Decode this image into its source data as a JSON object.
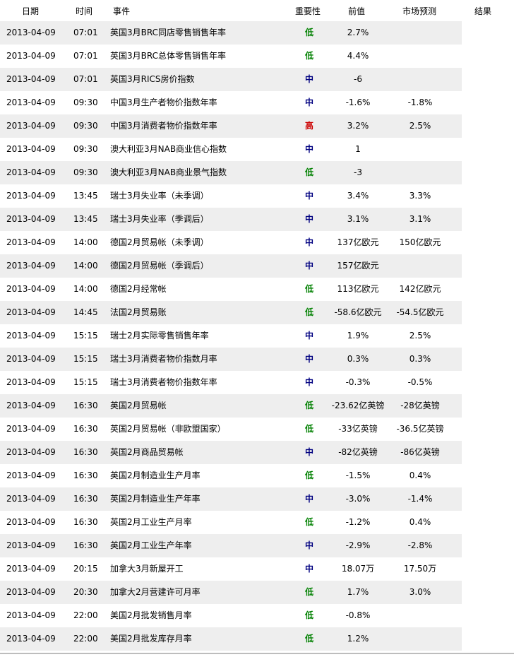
{
  "colors": {
    "low": "#008000",
    "medium": "#000080",
    "high": "#cc0000",
    "row_alt": "#eeeeee"
  },
  "header": {
    "date": "日期",
    "time": "时间",
    "event": "事件",
    "importance": "重要性",
    "previous": "前值",
    "forecast": "市场预测",
    "result": "结果"
  },
  "rows": [
    {
      "date": "2013-04-09",
      "time": "07:01",
      "event": "英国3月BRC同店零售销售年率",
      "importance": "低",
      "level": "low",
      "previous": "2.7%",
      "forecast": ""
    },
    {
      "date": "2013-04-09",
      "time": "07:01",
      "event": "英国3月BRC总体零售销售年率",
      "importance": "低",
      "level": "low",
      "previous": "4.4%",
      "forecast": ""
    },
    {
      "date": "2013-04-09",
      "time": "07:01",
      "event": "英国3月RICS房价指数",
      "importance": "中",
      "level": "medium",
      "previous": "-6",
      "forecast": ""
    },
    {
      "date": "2013-04-09",
      "time": "09:30",
      "event": "中国3月生产者物价指数年率",
      "importance": "中",
      "level": "medium",
      "previous": "-1.6%",
      "forecast": "-1.8%"
    },
    {
      "date": "2013-04-09",
      "time": "09:30",
      "event": "中国3月消费者物价指数年率",
      "importance": "高",
      "level": "high",
      "previous": "3.2%",
      "forecast": "2.5%"
    },
    {
      "date": "2013-04-09",
      "time": "09:30",
      "event": "澳大利亚3月NAB商业信心指数",
      "importance": "中",
      "level": "medium",
      "previous": "1",
      "forecast": ""
    },
    {
      "date": "2013-04-09",
      "time": "09:30",
      "event": "澳大利亚3月NAB商业景气指数",
      "importance": "低",
      "level": "low",
      "previous": "-3",
      "forecast": ""
    },
    {
      "date": "2013-04-09",
      "time": "13:45",
      "event": "瑞士3月失业率（未季调）",
      "importance": "中",
      "level": "medium",
      "previous": "3.4%",
      "forecast": "3.3%"
    },
    {
      "date": "2013-04-09",
      "time": "13:45",
      "event": "瑞士3月失业率（季调后）",
      "importance": "中",
      "level": "medium",
      "previous": "3.1%",
      "forecast": "3.1%"
    },
    {
      "date": "2013-04-09",
      "time": "14:00",
      "event": "德国2月贸易帐（未季调）",
      "importance": "中",
      "level": "medium",
      "previous": "137亿欧元",
      "forecast": "150亿欧元"
    },
    {
      "date": "2013-04-09",
      "time": "14:00",
      "event": "德国2月贸易帐（季调后）",
      "importance": "中",
      "level": "medium",
      "previous": "157亿欧元",
      "forecast": ""
    },
    {
      "date": "2013-04-09",
      "time": "14:00",
      "event": "德国2月经常帐",
      "importance": "低",
      "level": "low",
      "previous": "113亿欧元",
      "forecast": "142亿欧元"
    },
    {
      "date": "2013-04-09",
      "time": "14:45",
      "event": "法国2月贸易账",
      "importance": "低",
      "level": "low",
      "previous": "-58.6亿欧元",
      "forecast": "-54.5亿欧元"
    },
    {
      "date": "2013-04-09",
      "time": "15:15",
      "event": "瑞士2月实际零售销售年率",
      "importance": "中",
      "level": "medium",
      "previous": "1.9%",
      "forecast": "2.5%"
    },
    {
      "date": "2013-04-09",
      "time": "15:15",
      "event": "瑞士3月消费者物价指数月率",
      "importance": "中",
      "level": "medium",
      "previous": "0.3%",
      "forecast": "0.3%"
    },
    {
      "date": "2013-04-09",
      "time": "15:15",
      "event": "瑞士3月消费者物价指数年率",
      "importance": "中",
      "level": "medium",
      "previous": "-0.3%",
      "forecast": "-0.5%"
    },
    {
      "date": "2013-04-09",
      "time": "16:30",
      "event": "英国2月贸易帐",
      "importance": "低",
      "level": "low",
      "previous": "-23.62亿英镑",
      "forecast": "-28亿英镑"
    },
    {
      "date": "2013-04-09",
      "time": "16:30",
      "event": "英国2月贸易帐（非欧盟国家）",
      "importance": "低",
      "level": "low",
      "previous": "-33亿英镑",
      "forecast": "-36.5亿英镑"
    },
    {
      "date": "2013-04-09",
      "time": "16:30",
      "event": "英国2月商品贸易帐",
      "importance": "中",
      "level": "medium",
      "previous": "-82亿英镑",
      "forecast": "-86亿英镑"
    },
    {
      "date": "2013-04-09",
      "time": "16:30",
      "event": "英国2月制造业生产月率",
      "importance": "低",
      "level": "low",
      "previous": "-1.5%",
      "forecast": "0.4%"
    },
    {
      "date": "2013-04-09",
      "time": "16:30",
      "event": "英国2月制造业生产年率",
      "importance": "中",
      "level": "medium",
      "previous": "-3.0%",
      "forecast": "-1.4%"
    },
    {
      "date": "2013-04-09",
      "time": "16:30",
      "event": "英国2月工业生产月率",
      "importance": "低",
      "level": "low",
      "previous": "-1.2%",
      "forecast": "0.4%"
    },
    {
      "date": "2013-04-09",
      "time": "16:30",
      "event": "英国2月工业生产年率",
      "importance": "中",
      "level": "medium",
      "previous": "-2.9%",
      "forecast": "-2.8%"
    },
    {
      "date": "2013-04-09",
      "time": "20:15",
      "event": "加拿大3月新屋开工",
      "importance": "中",
      "level": "medium",
      "previous": "18.07万",
      "forecast": "17.50万"
    },
    {
      "date": "2013-04-09",
      "time": "20:30",
      "event": "加拿大2月营建许可月率",
      "importance": "低",
      "level": "low",
      "previous": "1.7%",
      "forecast": "3.0%"
    },
    {
      "date": "2013-04-09",
      "time": "22:00",
      "event": "美国2月批发销售月率",
      "importance": "低",
      "level": "low",
      "previous": "-0.8%",
      "forecast": ""
    },
    {
      "date": "2013-04-09",
      "time": "22:00",
      "event": "美国2月批发库存月率",
      "importance": "低",
      "level": "low",
      "previous": "1.2%",
      "forecast": ""
    }
  ]
}
